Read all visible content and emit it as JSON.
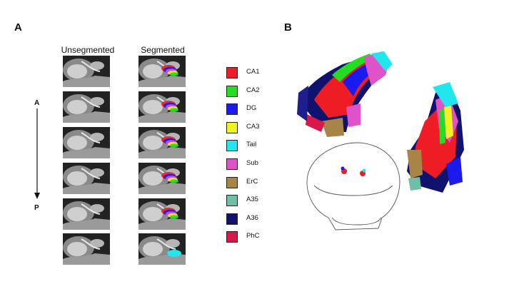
{
  "panel_a": {
    "letter": "A",
    "unsegmented_label": "Unsegmented",
    "segmented_label": "Segmented",
    "axis_top": "A",
    "axis_bottom": "P",
    "slice_count": 6
  },
  "panel_b": {
    "letter": "B"
  },
  "legend": [
    {
      "label": "CA1",
      "color": "#ee1c24"
    },
    {
      "label": "CA2",
      "color": "#22dd22"
    },
    {
      "label": "DG",
      "color": "#1a1aee"
    },
    {
      "label": "CA3",
      "color": "#f2f21e"
    },
    {
      "label": "Tail",
      "color": "#22e6ee"
    },
    {
      "label": "Sub",
      "color": "#e052c8"
    },
    {
      "label": "ErC",
      "color": "#a88546"
    },
    {
      "label": "A35",
      "color": "#6fbfa6"
    },
    {
      "label": "A36",
      "color": "#11116e"
    },
    {
      "label": "PhC",
      "color": "#d8174a"
    }
  ]
}
